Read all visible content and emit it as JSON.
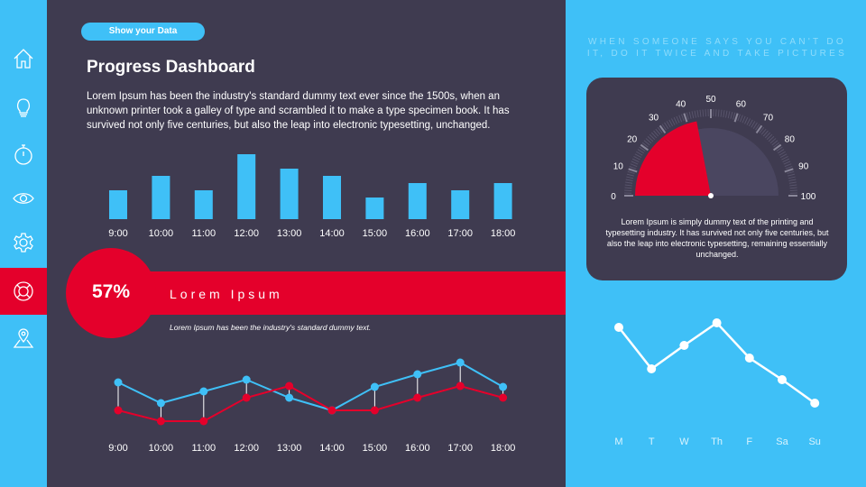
{
  "sidebar": {
    "items": [
      {
        "icon": "home-icon"
      },
      {
        "icon": "lightbulb-icon"
      },
      {
        "icon": "stopwatch-icon"
      },
      {
        "icon": "eye-icon"
      },
      {
        "icon": "gear-icon"
      },
      {
        "icon": "lifebuoy-icon",
        "active": true
      },
      {
        "icon": "map-pin-icon"
      }
    ]
  },
  "header": {
    "pill": "Show your Data",
    "title": "Progress Dashboard",
    "intro": "Lorem Ipsum has been the industry's standard dummy text ever since the 1500s, when an unknown printer took a galley of type and scrambled it to make a type specimen book. It has survived not only five centuries, but also the leap into electronic typesetting, unchanged."
  },
  "highlight": {
    "percent": "57%",
    "heading": "Lorem Ipsum",
    "subtext": "Lorem Ipsum has been the industry's standard dummy text."
  },
  "quote": "WHEN SOMEONE SAYS YOU CAN'T DO IT, DO IT TWICE AND TAKE PICTURES",
  "gauge_text": "Lorem Ipsum is simply dummy text of the printing and typesetting industry. It has survived not only five centuries, but also the leap into electronic typesetting, remaining essentially  unchanged.",
  "colors": {
    "blue": "#3fc0f7",
    "red": "#e4002b",
    "dark": "#3f3b50"
  },
  "chart_data": [
    {
      "type": "bar",
      "categories": [
        "9:00",
        "10:00",
        "11:00",
        "12:00",
        "13:00",
        "14:00",
        "15:00",
        "16:00",
        "17:00",
        "18:00"
      ],
      "values": [
        4,
        6,
        4,
        9,
        7,
        6,
        3,
        5,
        4,
        5
      ],
      "color": "#3fc0f7"
    },
    {
      "type": "line",
      "categories": [
        "9:00",
        "10:00",
        "11:00",
        "12:00",
        "13:00",
        "14:00",
        "15:00",
        "16:00",
        "17:00",
        "18:00"
      ],
      "series": [
        {
          "color": "#3fc0f7",
          "values": [
            56,
            33,
            46,
            59,
            39,
            25,
            51,
            65,
            78,
            51
          ]
        },
        {
          "color": "#e4002b",
          "values": [
            25,
            13,
            13,
            39,
            52,
            25,
            25,
            39,
            52,
            39
          ]
        }
      ]
    },
    {
      "type": "gauge",
      "value": 44,
      "min": 0,
      "max": 100,
      "tick_labels": [
        "0",
        "10",
        "20",
        "30",
        "40",
        "50",
        "60",
        "70",
        "80",
        "90",
        "100"
      ]
    },
    {
      "type": "line",
      "categories": [
        "M",
        "T",
        "W",
        "Th",
        "F",
        "Sa",
        "Su"
      ],
      "values": [
        117,
        71,
        97,
        122,
        83,
        59,
        33
      ],
      "color": "#ffffff"
    }
  ]
}
